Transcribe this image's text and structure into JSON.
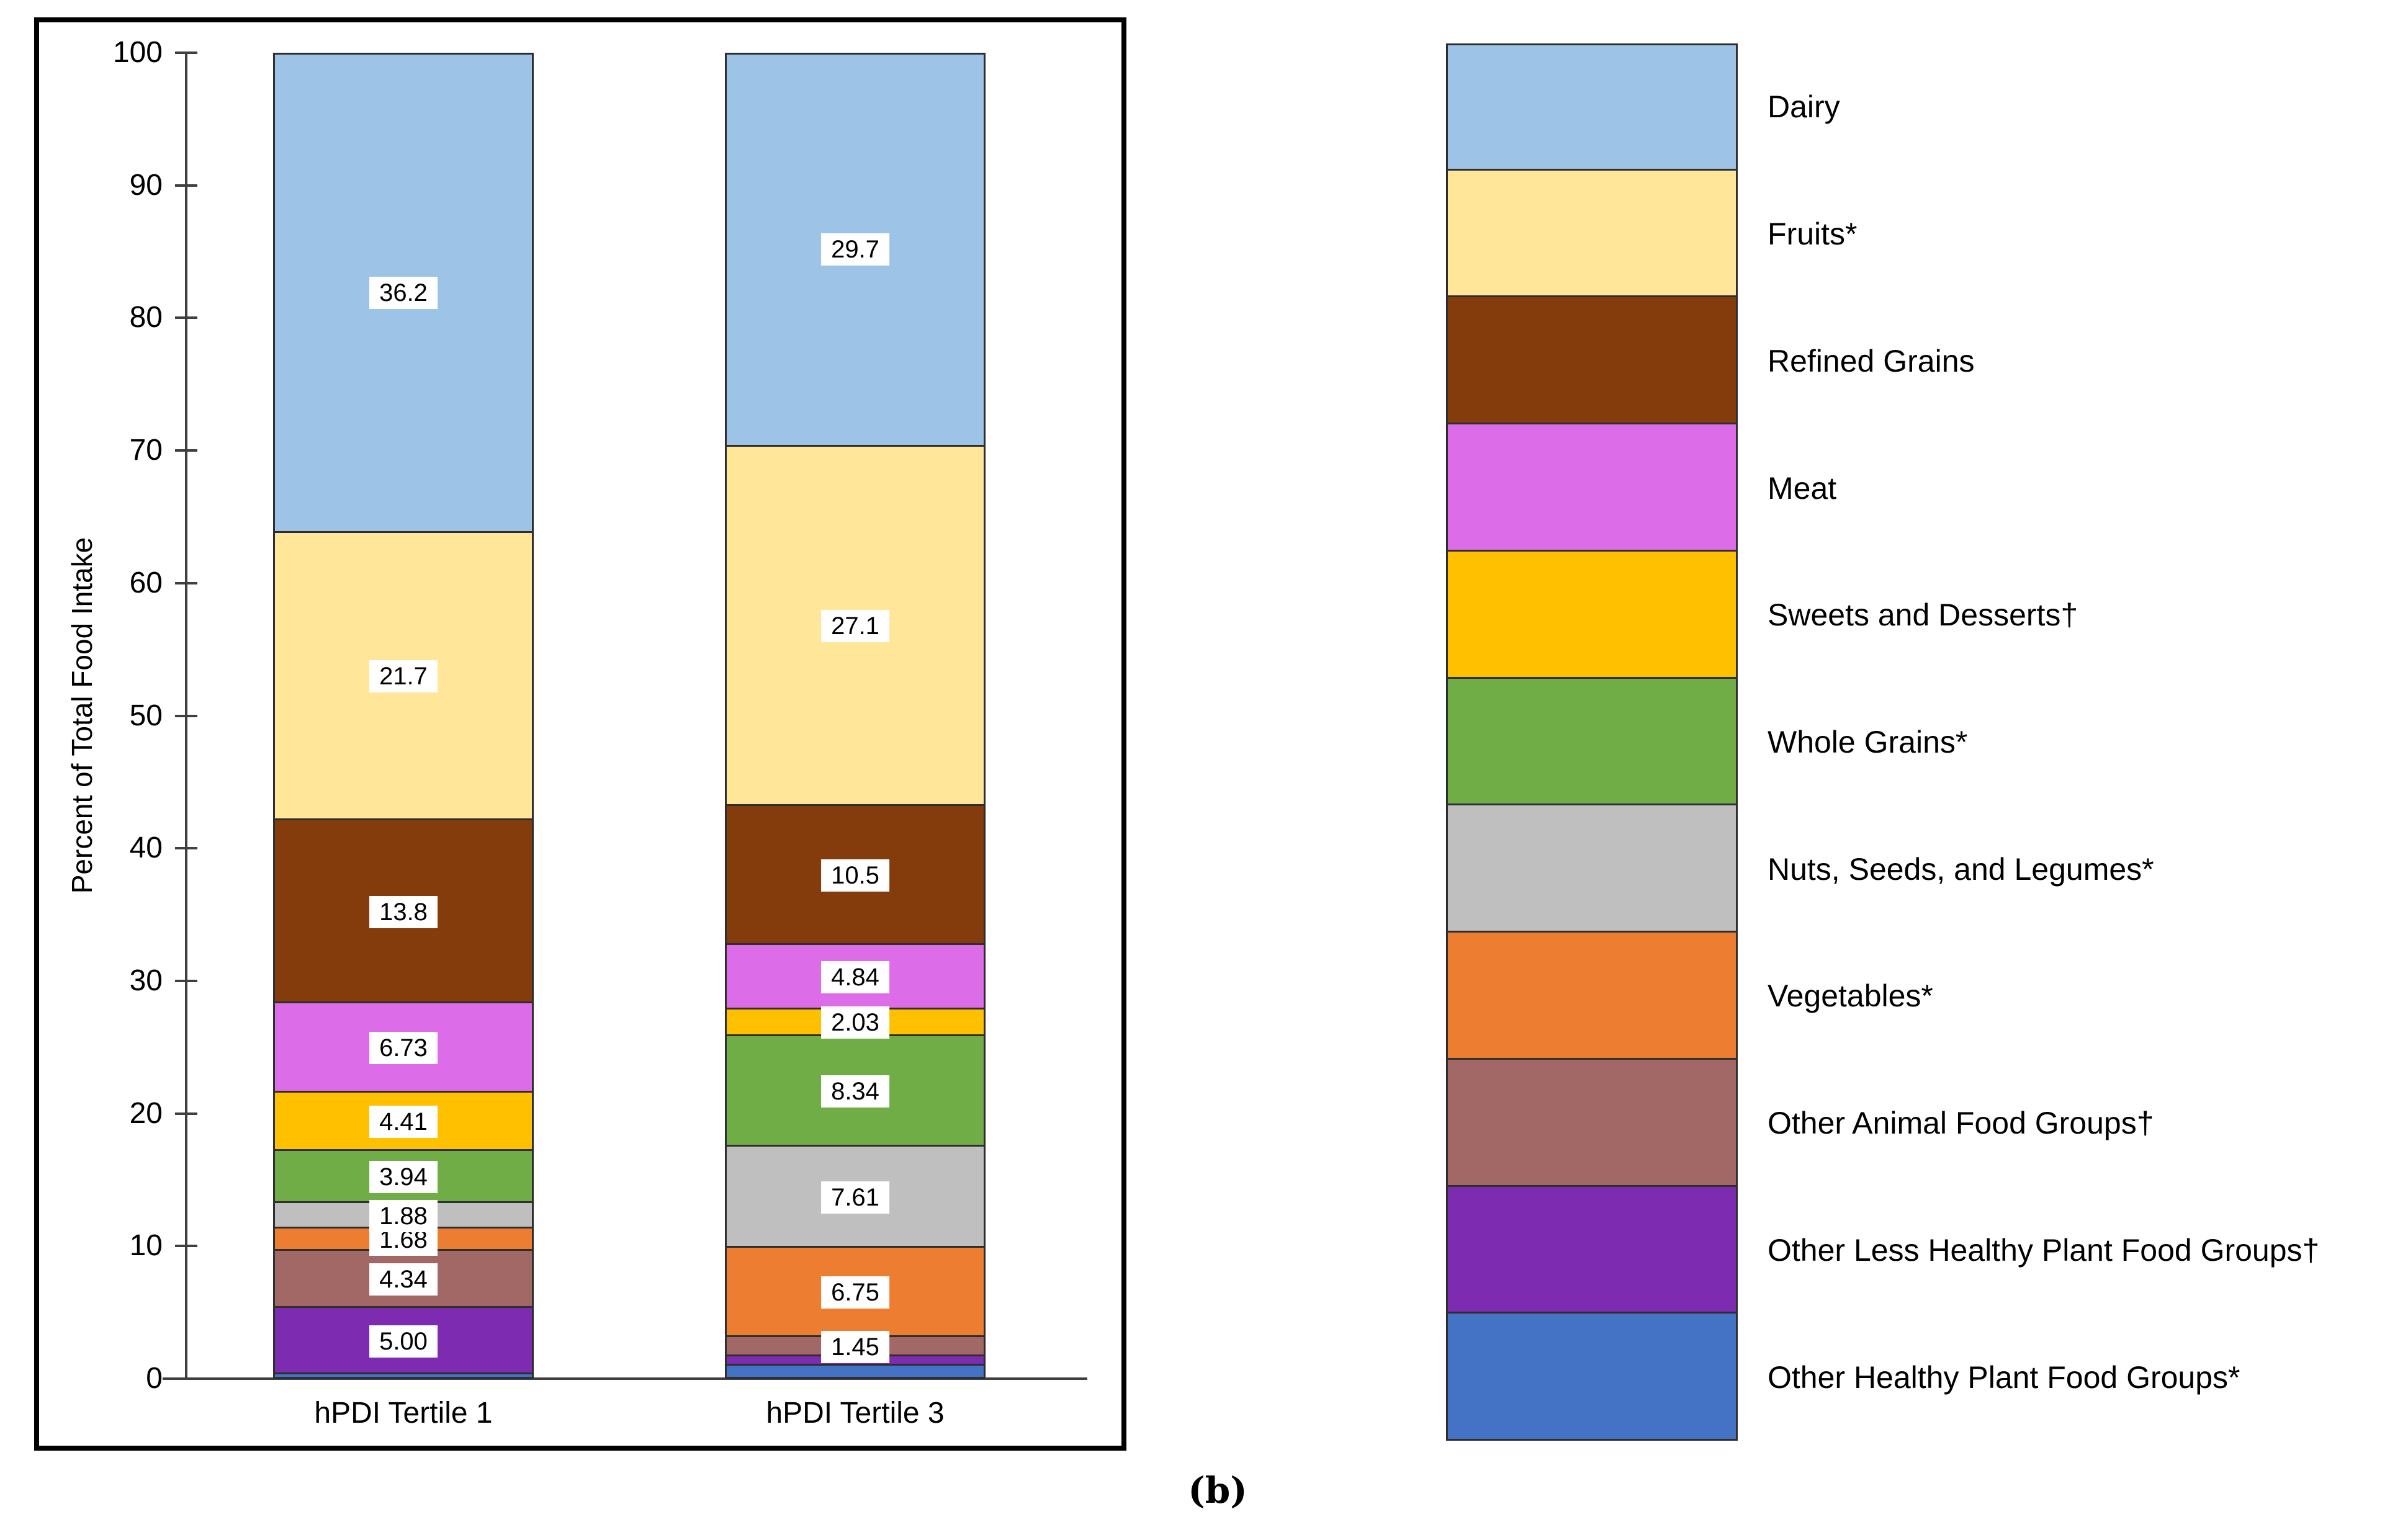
{
  "figure": {
    "caption": "(b)"
  },
  "chart_data": {
    "type": "bar",
    "stacked": true,
    "title": "",
    "xlabel": "",
    "ylabel": "Percent of Total Food Intake",
    "ylim": [
      0,
      100
    ],
    "yticks": [
      0,
      10,
      20,
      30,
      40,
      50,
      60,
      70,
      80,
      90,
      100
    ],
    "grid": false,
    "legend_position": "right",
    "categories": [
      "hPDI Tertile 1",
      "hPDI Tertile 3"
    ],
    "series": [
      {
        "name": "Other Healthy Plant Food Groups*",
        "color": "#4472C4",
        "values": [
          0.32,
          0.98
        ],
        "labels": [
          "",
          ""
        ]
      },
      {
        "name": "Other Less Healthy Plant Food Groups†",
        "color": "#7D2BB0",
        "values": [
          5.0,
          0.7
        ],
        "labels": [
          "5.00",
          ""
        ]
      },
      {
        "name": "Other Animal Food Groups†",
        "color": "#A26865",
        "values": [
          4.34,
          1.45
        ],
        "labels": [
          "4.34",
          "1.45"
        ]
      },
      {
        "name": "Vegetables*",
        "color": "#ED7D31",
        "values": [
          1.68,
          6.75
        ],
        "labels": [
          "1.68",
          "6.75"
        ]
      },
      {
        "name": "Nuts, Seeds, and Legumes*",
        "color": "#BFBFBF",
        "values": [
          1.88,
          7.61
        ],
        "labels": [
          "1.88",
          "7.61"
        ]
      },
      {
        "name": "Whole Grains*",
        "color": "#70AD47",
        "values": [
          3.94,
          8.34
        ],
        "labels": [
          "3.94",
          "8.34"
        ]
      },
      {
        "name": "Sweets and Desserts†",
        "color": "#FFC000",
        "values": [
          4.41,
          2.03
        ],
        "labels": [
          "4.41",
          "2.03"
        ]
      },
      {
        "name": "Meat",
        "color": "#DD6CE8",
        "values": [
          6.73,
          4.84
        ],
        "labels": [
          "6.73",
          "4.84"
        ]
      },
      {
        "name": "Refined Grains",
        "color": "#843C0C",
        "values": [
          13.8,
          10.5
        ],
        "labels": [
          "13.8",
          "10.5"
        ]
      },
      {
        "name": "Fruits*",
        "color": "#FFE699",
        "values": [
          21.7,
          27.1
        ],
        "labels": [
          "21.7",
          "27.1"
        ]
      },
      {
        "name": "Dairy",
        "color": "#9DC3E6",
        "values": [
          36.2,
          29.7
        ],
        "labels": [
          "36.2",
          "29.7"
        ]
      }
    ]
  }
}
